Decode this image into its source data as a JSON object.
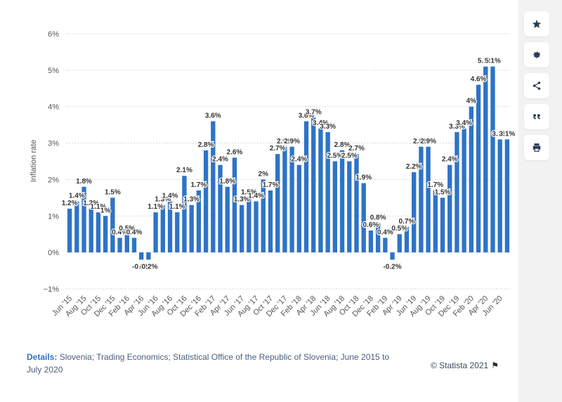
{
  "toolbar": {
    "items": [
      {
        "icon": "star-icon"
      },
      {
        "icon": "gear-icon"
      },
      {
        "icon": "share-icon"
      },
      {
        "icon": "quote-icon"
      },
      {
        "icon": "print-icon"
      }
    ]
  },
  "details": {
    "label": "Details:",
    "text": " Slovenia; Trading Economics; Statistical Office of the Republic of Slovenia; June 2015 to July 2020"
  },
  "credit": {
    "text": "© Statista 2021"
  },
  "chart_data": {
    "type": "bar",
    "ylabel": "Inflation rate",
    "xlabel": "",
    "ylim": [
      -1,
      6
    ],
    "yticks": [
      -1,
      0,
      1,
      2,
      3,
      4,
      5,
      6
    ],
    "ytick_labels": [
      "−1%",
      "0%",
      "1%",
      "2%",
      "3%",
      "4%",
      "5%",
      "6%"
    ],
    "bar_color": "#2e73c6",
    "grid": true,
    "categories": [
      "Jun '15",
      "Jul '15",
      "Aug '15",
      "Sep '15",
      "Oct '15",
      "Nov '15",
      "Dec '15",
      "Jan '16",
      "Feb '16",
      "Mar '16",
      "Apr '16",
      "May '16",
      "Jun '16",
      "Jul '16",
      "Aug '16",
      "Sep '16",
      "Oct '16",
      "Nov '16",
      "Dec '16",
      "Jan '17",
      "Feb '17",
      "Mar '17",
      "Apr '17",
      "May '17",
      "Jun '17",
      "Jul '17",
      "Aug '17",
      "Sep '17",
      "Oct '17",
      "Nov '17",
      "Dec '17",
      "Jan '18",
      "Feb '18",
      "Mar '18",
      "Apr '18",
      "May '18",
      "Jun '18",
      "Jul '18",
      "Aug '18",
      "Sep '18",
      "Oct '18",
      "Nov '18",
      "Dec '18",
      "Jan '19",
      "Feb '19",
      "Mar '19",
      "Apr '19",
      "May '19",
      "Jun '19",
      "Jul '19",
      "Aug '19",
      "Sep '19",
      "Oct '19",
      "Nov '19",
      "Dec '19",
      "Jan '20",
      "Feb '20",
      "Mar '20",
      "Apr '20",
      "May '20",
      "Jun '20",
      "Jul '20"
    ],
    "x_tick_labels": [
      "Jun '15",
      "Aug '15",
      "Oct '15",
      "Dec '15",
      "Feb '16",
      "Apr '16",
      "Jun '16",
      "Aug '16",
      "Oct '16",
      "Dec '16",
      "Feb '17",
      "Apr '17",
      "Jun '17",
      "Aug '17",
      "Oct '17",
      "Dec '17",
      "Feb '18",
      "Apr '18",
      "Jun '18",
      "Aug '18",
      "Oct '18",
      "Dec '18",
      "Feb '19",
      "Apr '19",
      "Jun '19",
      "Aug '19",
      "Oct '19",
      "Dec '19",
      "Feb '20",
      "Apr '20",
      "Jun '20"
    ],
    "values": [
      1.2,
      1.4,
      1.8,
      1.2,
      1.1,
      1.0,
      1.5,
      0.4,
      0.5,
      0.4,
      -0.2,
      -0.2,
      1.1,
      1.3,
      1.4,
      1.1,
      2.1,
      1.3,
      1.7,
      2.8,
      3.6,
      2.4,
      1.8,
      2.6,
      1.3,
      1.5,
      1.4,
      2.0,
      1.7,
      2.7,
      2.9,
      2.9,
      2.4,
      3.6,
      3.7,
      3.4,
      3.3,
      2.5,
      2.8,
      2.5,
      2.7,
      1.9,
      0.6,
      0.8,
      0.4,
      -0.2,
      0.5,
      0.7,
      2.2,
      2.9,
      2.9,
      1.7,
      1.5,
      2.4,
      3.3,
      3.4,
      4.0,
      4.6,
      5.1,
      5.1,
      3.1,
      3.1
    ],
    "value_labels": [
      "1.2%",
      "1.4%",
      "1.8%",
      "1.2%",
      "1.1%",
      "1%",
      "1.5%",
      "0.4%",
      "0.5%",
      "0.4%",
      "-0.2%",
      "-0.2%",
      "1.1%",
      "1.3%",
      "1.4%",
      "1.1%",
      "2.1%",
      "1.3%",
      "1.7%",
      "2.8%",
      "3.6%",
      "2.4%",
      "1.8%",
      "2.6%",
      "1.3%",
      "1.5%",
      "1.4%",
      "2%",
      "1.7%",
      "2.7%",
      "2.9%",
      "2.9%",
      "2.4%",
      "3.6%",
      "3.7%",
      "3.4%",
      "3.3%",
      "2.5%",
      "2.8%",
      "2.5%",
      "2.7%",
      "1.9%",
      "0.6%",
      "0.8%",
      "0.4%",
      "-0.2%",
      "0.5%",
      "0.7%",
      "2.2%",
      "2.9%",
      "2.9%",
      "1.7%",
      "1.5%",
      "2.4%",
      "3.3%",
      "3.4%",
      "4%",
      "4.6%",
      "5.1%",
      "5.1%",
      "3.1%",
      "3.1%"
    ]
  }
}
